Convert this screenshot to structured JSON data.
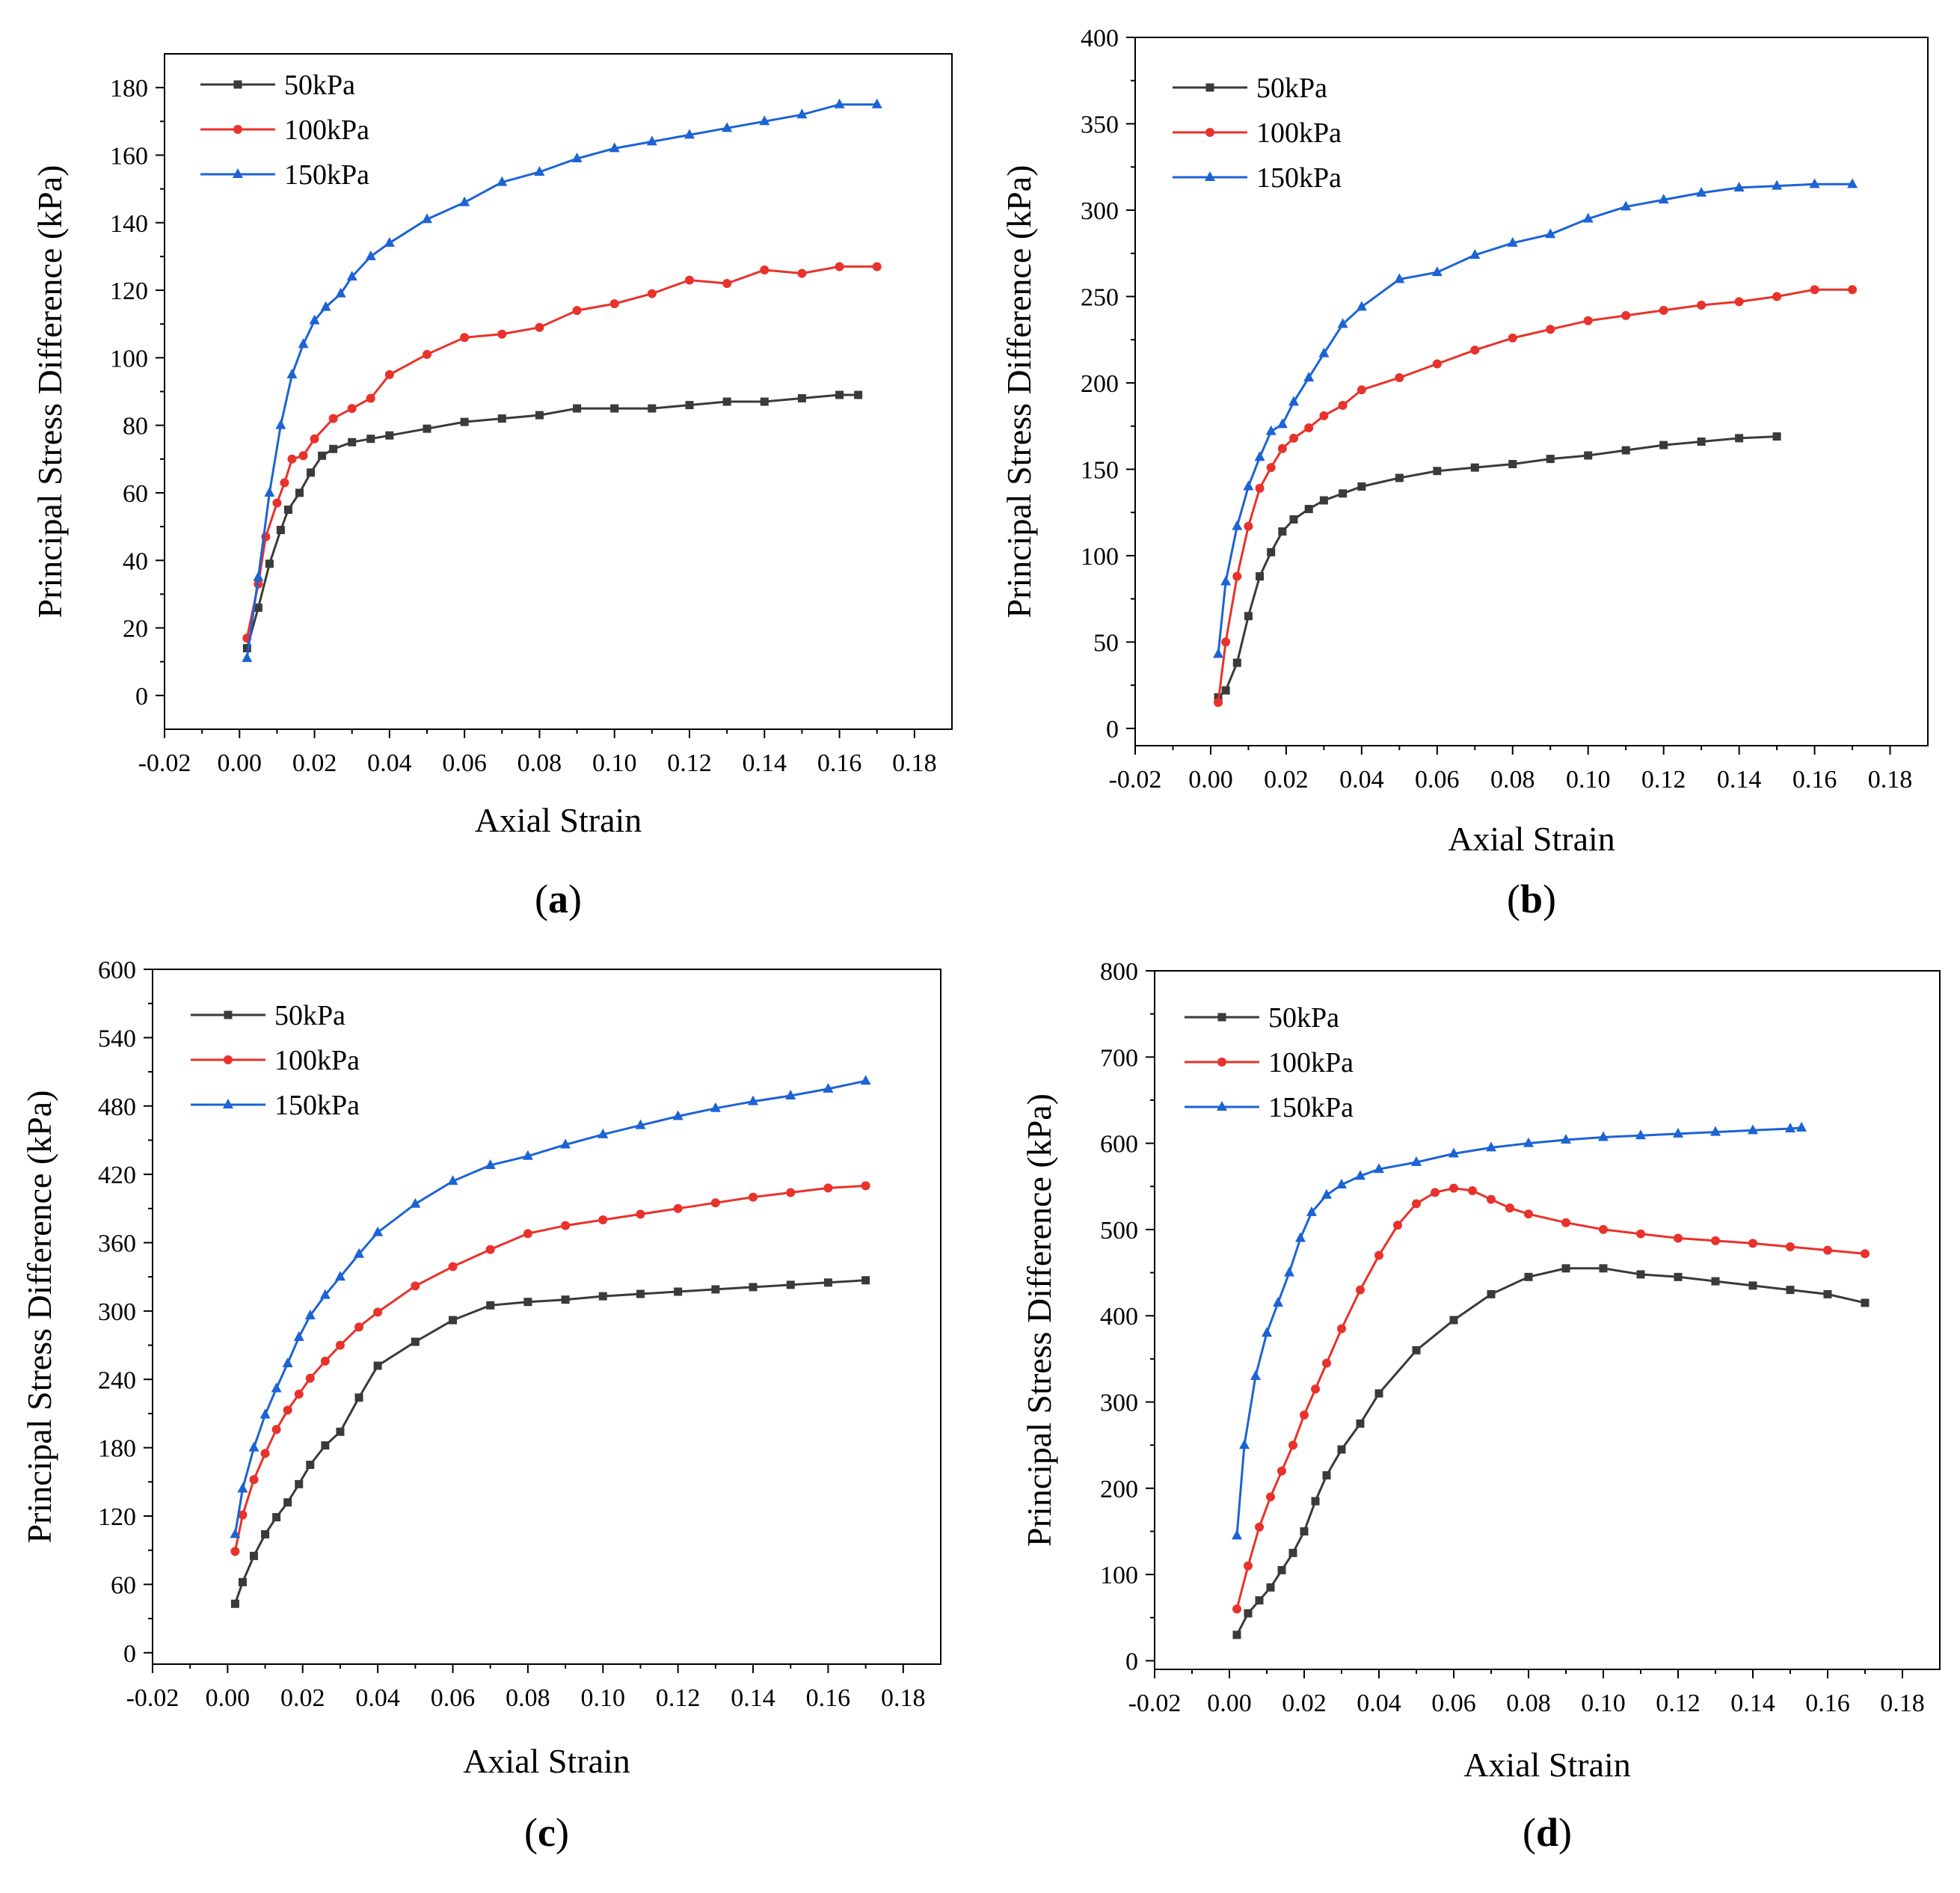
{
  "figure": {
    "series_colors": {
      "50kPa": "#3a3a3a",
      "100kPa": "#e8322b",
      "150kPa": "#1c63d5"
    }
  },
  "chart_data": [
    {
      "type": "line",
      "panel_label": "a",
      "xlabel": "Axial Strain",
      "ylabel": "Principal Stress Difference (kPa)",
      "xlim": [
        -0.02,
        0.19
      ],
      "ylim": [
        -10,
        190
      ],
      "xticks": [
        -0.02,
        0.0,
        0.02,
        0.04,
        0.06,
        0.08,
        0.1,
        0.12,
        0.14,
        0.16,
        0.18
      ],
      "xtick_labels": [
        "-0.02",
        "0.00",
        "0.02",
        "0.04",
        "0.06",
        "0.08",
        "0.10",
        "0.12",
        "0.14",
        "0.16",
        "0.18"
      ],
      "yticks": [
        0,
        20,
        40,
        60,
        80,
        100,
        120,
        140,
        160,
        180
      ],
      "ytick_labels": [
        "0",
        "20",
        "40",
        "60",
        "80",
        "100",
        "120",
        "140",
        "160",
        "180"
      ],
      "legend": "top-left",
      "series": [
        {
          "name": "50kPa",
          "marker": "square",
          "x": [
            0.002,
            0.005,
            0.008,
            0.011,
            0.013,
            0.016,
            0.019,
            0.022,
            0.025,
            0.03,
            0.035,
            0.04,
            0.05,
            0.06,
            0.07,
            0.08,
            0.09,
            0.1,
            0.11,
            0.12,
            0.13,
            0.14,
            0.15,
            0.16,
            0.165
          ],
          "y": [
            14,
            26,
            39,
            49,
            55,
            60,
            66,
            71,
            73,
            75,
            76,
            77,
            79,
            81,
            82,
            83,
            85,
            85,
            85,
            86,
            87,
            87,
            88,
            89,
            89
          ]
        },
        {
          "name": "100kPa",
          "marker": "circle",
          "x": [
            0.002,
            0.005,
            0.007,
            0.01,
            0.012,
            0.014,
            0.017,
            0.02,
            0.025,
            0.03,
            0.035,
            0.04,
            0.05,
            0.06,
            0.07,
            0.08,
            0.09,
            0.1,
            0.11,
            0.12,
            0.13,
            0.14,
            0.15,
            0.16,
            0.17
          ],
          "y": [
            17,
            33,
            47,
            57,
            63,
            70,
            71,
            76,
            82,
            85,
            88,
            95,
            101,
            106,
            107,
            109,
            114,
            116,
            119,
            123,
            122,
            126,
            125,
            127,
            127
          ]
        },
        {
          "name": "150kPa",
          "marker": "triangle",
          "x": [
            0.002,
            0.005,
            0.008,
            0.011,
            0.014,
            0.017,
            0.02,
            0.023,
            0.027,
            0.03,
            0.035,
            0.04,
            0.05,
            0.06,
            0.07,
            0.08,
            0.09,
            0.1,
            0.11,
            0.12,
            0.13,
            0.14,
            0.15,
            0.16,
            0.17
          ],
          "y": [
            11,
            35,
            60,
            80,
            95,
            104,
            111,
            115,
            119,
            124,
            130,
            134,
            141,
            146,
            152,
            155,
            159,
            162,
            164,
            166,
            168,
            170,
            172,
            175,
            175
          ]
        }
      ]
    },
    {
      "type": "line",
      "panel_label": "b",
      "xlabel": "Axial Strain",
      "ylabel": "Principal Stress Difference (kPa)",
      "xlim": [
        -0.02,
        0.19
      ],
      "ylim": [
        -10,
        400
      ],
      "xticks": [
        -0.02,
        0.0,
        0.02,
        0.04,
        0.06,
        0.08,
        0.1,
        0.12,
        0.14,
        0.16,
        0.18
      ],
      "xtick_labels": [
        "-0.02",
        "0.00",
        "0.02",
        "0.04",
        "0.06",
        "0.08",
        "0.10",
        "0.12",
        "0.14",
        "0.16",
        "0.18"
      ],
      "yticks": [
        0,
        50,
        100,
        150,
        200,
        250,
        300,
        350,
        400
      ],
      "ytick_labels": [
        "0",
        "50",
        "100",
        "150",
        "200",
        "250",
        "300",
        "350",
        "400"
      ],
      "legend": "top-left",
      "series": [
        {
          "name": "50kPa",
          "marker": "square",
          "x": [
            0.002,
            0.004,
            0.007,
            0.01,
            0.013,
            0.016,
            0.019,
            0.022,
            0.026,
            0.03,
            0.035,
            0.04,
            0.05,
            0.06,
            0.07,
            0.08,
            0.09,
            0.1,
            0.11,
            0.12,
            0.13,
            0.14,
            0.15
          ],
          "y": [
            18,
            22,
            38,
            65,
            88,
            102,
            114,
            121,
            127,
            132,
            136,
            140,
            145,
            149,
            151,
            153,
            156,
            158,
            161,
            164,
            166,
            168,
            169
          ]
        },
        {
          "name": "100kPa",
          "marker": "circle",
          "x": [
            0.002,
            0.004,
            0.007,
            0.01,
            0.013,
            0.016,
            0.019,
            0.022,
            0.026,
            0.03,
            0.035,
            0.04,
            0.05,
            0.06,
            0.07,
            0.08,
            0.09,
            0.1,
            0.11,
            0.12,
            0.13,
            0.14,
            0.15,
            0.16,
            0.17
          ],
          "y": [
            15,
            50,
            88,
            117,
            139,
            151,
            162,
            168,
            174,
            181,
            187,
            196,
            203,
            211,
            219,
            226,
            231,
            236,
            239,
            242,
            245,
            247,
            250,
            254,
            254
          ]
        },
        {
          "name": "150kPa",
          "marker": "triangle",
          "x": [
            0.002,
            0.004,
            0.007,
            0.01,
            0.013,
            0.016,
            0.019,
            0.022,
            0.026,
            0.03,
            0.035,
            0.04,
            0.05,
            0.06,
            0.07,
            0.08,
            0.09,
            0.1,
            0.11,
            0.12,
            0.13,
            0.14,
            0.15,
            0.16,
            0.17
          ],
          "y": [
            43,
            85,
            117,
            140,
            157,
            172,
            176,
            189,
            203,
            217,
            234,
            244,
            260,
            264,
            274,
            281,
            286,
            295,
            302,
            306,
            310,
            313,
            314,
            315,
            315
          ]
        }
      ]
    },
    {
      "type": "line",
      "panel_label": "c",
      "xlabel": "Axial Strain",
      "ylabel": "Principal Stress Difference (kPa)",
      "xlim": [
        -0.02,
        0.19
      ],
      "ylim": [
        -10,
        600
      ],
      "xticks": [
        -0.02,
        0.0,
        0.02,
        0.04,
        0.06,
        0.08,
        0.1,
        0.12,
        0.14,
        0.16,
        0.18
      ],
      "xtick_labels": [
        "-0.02",
        "0.00",
        "0.02",
        "0.04",
        "0.06",
        "0.08",
        "0.10",
        "0.12",
        "0.14",
        "0.16",
        "0.18"
      ],
      "yticks": [
        0,
        60,
        120,
        180,
        240,
        300,
        360,
        420,
        480,
        540,
        600
      ],
      "ytick_labels": [
        "0",
        "60",
        "120",
        "180",
        "240",
        "300",
        "360",
        "420",
        "480",
        "540",
        "600"
      ],
      "legend": "top-left",
      "series": [
        {
          "name": "50kPa",
          "marker": "square",
          "x": [
            0.002,
            0.004,
            0.007,
            0.01,
            0.013,
            0.016,
            0.019,
            0.022,
            0.026,
            0.03,
            0.035,
            0.04,
            0.05,
            0.06,
            0.07,
            0.08,
            0.09,
            0.1,
            0.11,
            0.12,
            0.13,
            0.14,
            0.15,
            0.16,
            0.17
          ],
          "y": [
            43,
            62,
            85,
            104,
            119,
            132,
            148,
            165,
            182,
            194,
            224,
            252,
            273,
            292,
            305,
            308,
            310,
            313,
            315,
            317,
            319,
            321,
            323,
            325,
            327
          ]
        },
        {
          "name": "100kPa",
          "marker": "circle",
          "x": [
            0.002,
            0.004,
            0.007,
            0.01,
            0.013,
            0.016,
            0.019,
            0.022,
            0.026,
            0.03,
            0.035,
            0.04,
            0.05,
            0.06,
            0.07,
            0.08,
            0.09,
            0.1,
            0.11,
            0.12,
            0.13,
            0.14,
            0.15,
            0.16,
            0.17
          ],
          "y": [
            89,
            121,
            152,
            175,
            196,
            213,
            227,
            241,
            256,
            270,
            286,
            299,
            322,
            339,
            354,
            368,
            375,
            380,
            385,
            390,
            395,
            400,
            404,
            408,
            410
          ]
        },
        {
          "name": "150kPa",
          "marker": "triangle",
          "x": [
            0.002,
            0.004,
            0.007,
            0.01,
            0.013,
            0.016,
            0.019,
            0.022,
            0.026,
            0.03,
            0.035,
            0.04,
            0.05,
            0.06,
            0.07,
            0.08,
            0.09,
            0.1,
            0.11,
            0.12,
            0.13,
            0.14,
            0.15,
            0.16,
            0.17
          ],
          "y": [
            104,
            144,
            180,
            209,
            232,
            254,
            277,
            296,
            314,
            330,
            350,
            369,
            394,
            414,
            428,
            436,
            446,
            455,
            463,
            471,
            478,
            484,
            489,
            495,
            502
          ]
        }
      ]
    },
    {
      "type": "line",
      "panel_label": "d",
      "xlabel": "Axial Strain",
      "ylabel": "Principal Stress Difference (kPa)",
      "xlim": [
        -0.02,
        0.19
      ],
      "ylim": [
        -10,
        800
      ],
      "xticks": [
        -0.02,
        0.0,
        0.02,
        0.04,
        0.06,
        0.08,
        0.1,
        0.12,
        0.14,
        0.16,
        0.18
      ],
      "xtick_labels": [
        "-0.02",
        "0.00",
        "0.02",
        "0.04",
        "0.06",
        "0.08",
        "0.10",
        "0.12",
        "0.14",
        "0.16",
        "0.18"
      ],
      "yticks": [
        0,
        100,
        200,
        300,
        400,
        500,
        600,
        700,
        800
      ],
      "ytick_labels": [
        "0",
        "100",
        "200",
        "300",
        "400",
        "500",
        "600",
        "700",
        "800"
      ],
      "legend": "top-left",
      "series": [
        {
          "name": "50kPa",
          "marker": "square",
          "x": [
            0.002,
            0.005,
            0.008,
            0.011,
            0.014,
            0.017,
            0.02,
            0.023,
            0.026,
            0.03,
            0.035,
            0.04,
            0.05,
            0.06,
            0.07,
            0.08,
            0.09,
            0.1,
            0.11,
            0.12,
            0.13,
            0.14,
            0.15,
            0.16,
            0.17
          ],
          "y": [
            30,
            55,
            70,
            85,
            105,
            125,
            150,
            185,
            215,
            245,
            275,
            310,
            360,
            395,
            425,
            445,
            455,
            455,
            448,
            445,
            440,
            435,
            430,
            425,
            415
          ]
        },
        {
          "name": "100kPa",
          "marker": "circle",
          "x": [
            0.002,
            0.005,
            0.008,
            0.011,
            0.014,
            0.017,
            0.02,
            0.023,
            0.026,
            0.03,
            0.035,
            0.04,
            0.045,
            0.05,
            0.055,
            0.06,
            0.065,
            0.07,
            0.075,
            0.08,
            0.09,
            0.1,
            0.11,
            0.12,
            0.13,
            0.14,
            0.15,
            0.16,
            0.17
          ],
          "y": [
            60,
            110,
            155,
            190,
            220,
            250,
            285,
            315,
            345,
            385,
            430,
            470,
            505,
            530,
            543,
            548,
            545,
            535,
            525,
            518,
            508,
            500,
            495,
            490,
            487,
            484,
            480,
            476,
            472
          ]
        },
        {
          "name": "150kPa",
          "marker": "triangle",
          "x": [
            0.002,
            0.004,
            0.007,
            0.01,
            0.013,
            0.016,
            0.019,
            0.022,
            0.026,
            0.03,
            0.035,
            0.04,
            0.05,
            0.06,
            0.07,
            0.08,
            0.09,
            0.1,
            0.11,
            0.12,
            0.13,
            0.14,
            0.15,
            0.153
          ],
          "y": [
            145,
            250,
            330,
            380,
            415,
            450,
            490,
            520,
            540,
            552,
            562,
            570,
            578,
            588,
            595,
            600,
            604,
            607,
            609,
            611,
            613,
            615,
            617,
            618
          ]
        }
      ]
    }
  ]
}
